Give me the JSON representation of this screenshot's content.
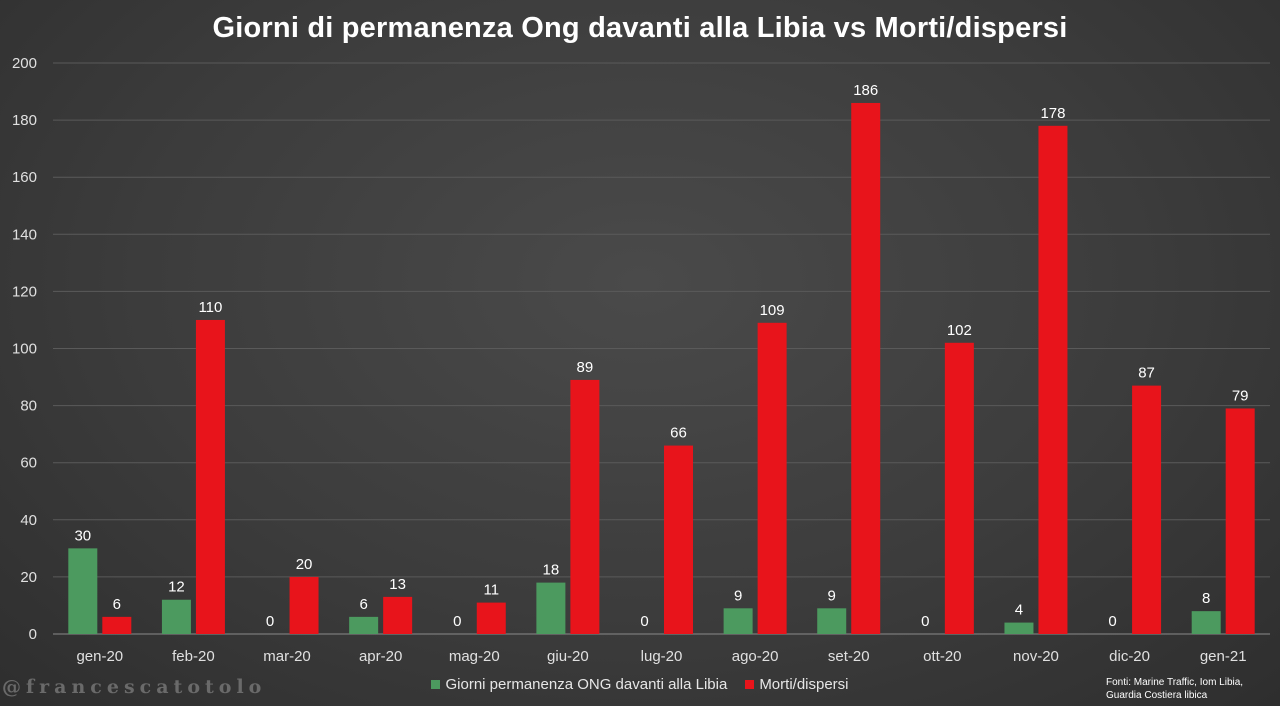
{
  "chart_data": {
    "type": "bar",
    "title": "Giorni di permanenza Ong davanti alla Libia vs Morti/dispersi",
    "categories": [
      "gen-20",
      "feb-20",
      "mar-20",
      "apr-20",
      "mag-20",
      "giu-20",
      "lug-20",
      "ago-20",
      "set-20",
      "ott-20",
      "nov-20",
      "dic-20",
      "gen-21"
    ],
    "series": [
      {
        "name": "Giorni permanenza ONG davanti alla Libia",
        "color": "#4c9a5f",
        "values": [
          30,
          12,
          0,
          6,
          0,
          18,
          0,
          9,
          9,
          0,
          4,
          0,
          8
        ]
      },
      {
        "name": "Morti/dispersi",
        "color": "#e8141b",
        "values": [
          6,
          110,
          20,
          13,
          11,
          89,
          66,
          109,
          186,
          102,
          178,
          87,
          79
        ]
      }
    ],
    "ylim": [
      0,
      200
    ],
    "yticks": [
      0,
      20,
      40,
      60,
      80,
      100,
      120,
      140,
      160,
      180,
      200
    ],
    "grid": true,
    "legend_position": "bottom"
  },
  "watermark": "@francescatotolo",
  "source_note": {
    "line1": "Fonti: Marine Traffic, Iom Libia,",
    "line2": "Guardia Costiera libica"
  }
}
